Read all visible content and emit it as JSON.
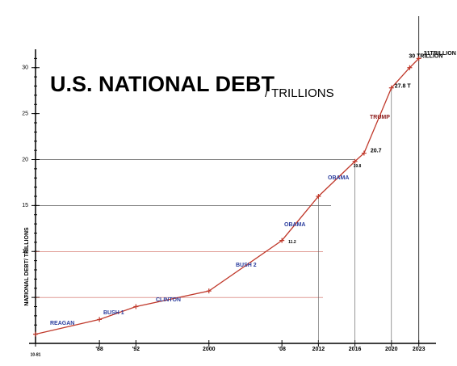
{
  "chart_data": {
    "type": "line",
    "title": "U.S. NATIONAL DEBT",
    "subtitle": "/ TRILLIONS",
    "y_label": "NATIONAL DEBT/ TRILLIONS",
    "x": [
      1981,
      1988,
      1992,
      2000,
      2008,
      2012,
      2016,
      2017,
      2020,
      2022,
      2023
    ],
    "series": [
      {
        "name": "National debt",
        "color": "#c0392b",
        "values": [
          1.0,
          2.6,
          4.0,
          5.7,
          11.2,
          16.0,
          19.8,
          20.7,
          27.8,
          30,
          31
        ],
        "value_labels": [
          null,
          null,
          null,
          null,
          "11.2",
          null,
          "19.8",
          "20.7",
          "27.8 T",
          "30 TRILLION",
          "31TRILLION"
        ]
      }
    ],
    "xlim": [
      1981,
      2024
    ],
    "ylim": [
      0,
      32
    ],
    "xticks": [
      {
        "value": 1981,
        "label": "10-81"
      },
      {
        "value": 1988,
        "label": "'88"
      },
      {
        "value": 1992,
        "label": "'92"
      },
      2000,
      {
        "value": 2008,
        "label": "'08"
      },
      2012,
      2016,
      2020,
      2023
    ],
    "yticks": [
      5,
      10,
      15,
      20,
      25,
      30
    ],
    "annotations": [
      "REAGAN",
      "BUSH 1",
      "CLINTON",
      "BUSH 2",
      "OBAMA",
      "OBAMA",
      "TRUMP"
    ]
  }
}
